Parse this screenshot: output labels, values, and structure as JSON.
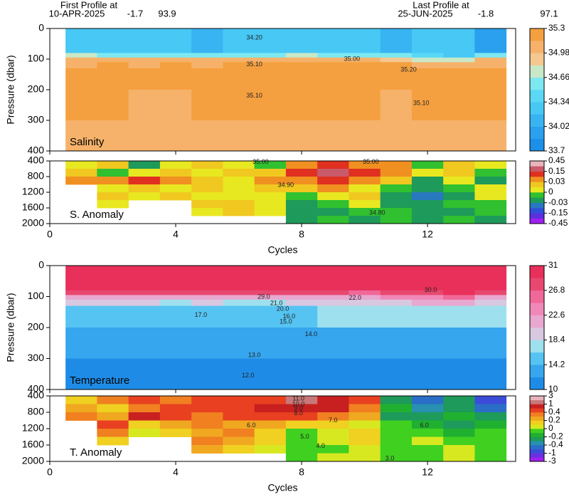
{
  "header": {
    "first_caption": "First Profile at",
    "first_date": "10-APR-2025",
    "first_lat": "-1.7",
    "first_lon": "93.9",
    "last_caption": "Last Profile at",
    "last_date": "25-JUN-2025",
    "last_lat": "-1.8",
    "last_lon": "97.1"
  },
  "chart_data": [
    {
      "type": "heatmap",
      "label": "Salinity",
      "ylabel": "Pressure (dbar)",
      "x": [
        1,
        2,
        3,
        4,
        5,
        6,
        7,
        8,
        9,
        10,
        11,
        12,
        13,
        14
      ],
      "y_bins": [
        0,
        80,
        95,
        110,
        130,
        200,
        300,
        400
      ],
      "values": [
        [
          34.3,
          34.2,
          34.2,
          34.2,
          34.1,
          34.2,
          34.2,
          34.3,
          34.3,
          34.2,
          34.1,
          34.2,
          34.3,
          34.0
        ],
        [
          34.7,
          34.6,
          34.6,
          34.5,
          34.6,
          34.6,
          34.6,
          34.7,
          34.6,
          34.5,
          34.6,
          34.4,
          34.3,
          34.5
        ],
        [
          35.0,
          35.05,
          35.0,
          35.0,
          35.05,
          35.0,
          35.0,
          35.05,
          35.0,
          35.0,
          34.9,
          34.8,
          34.7,
          35.0
        ],
        [
          35.1,
          35.15,
          35.1,
          35.2,
          35.1,
          35.15,
          35.2,
          35.15,
          35.2,
          35.2,
          35.2,
          35.1,
          35.0,
          35.1
        ],
        [
          35.15,
          35.2,
          35.2,
          35.15,
          35.2,
          35.2,
          35.15,
          35.2,
          35.2,
          35.15,
          35.2,
          35.2,
          35.2,
          35.2
        ],
        [
          35.15,
          35.15,
          35.1,
          35.1,
          35.15,
          35.15,
          35.15,
          35.15,
          35.15,
          35.15,
          35.1,
          35.15,
          35.15,
          35.15
        ],
        [
          35.12,
          35.12,
          35.1,
          35.1,
          35.12,
          35.12,
          35.1,
          35.1,
          35.12,
          35.12,
          35.1,
          35.12,
          35.12,
          35.12
        ]
      ],
      "xlim": [
        0,
        14.8
      ],
      "xticks": [
        0,
        4,
        8,
        12
      ],
      "ylim": [
        0,
        400
      ],
      "yticks": [
        0,
        100,
        200,
        300,
        400
      ],
      "colorbar": {
        "levels": [
          33.7,
          33.86,
          34.02,
          34.18,
          34.34,
          34.5,
          34.66,
          34.82,
          34.98,
          35.14,
          35.3
        ],
        "colors": [
          "#1c8fe8",
          "#2aa0ee",
          "#38b4f2",
          "#47c8f5",
          "#5ad8f5",
          "#7ee8f0",
          "#c8e8c8",
          "#f4c890",
          "#f6b26a",
          "#f5a040"
        ],
        "ticks": [
          35.3,
          34.98,
          34.66,
          34.34,
          34.02,
          33.7
        ]
      },
      "annotations": [
        {
          "text": "34.20",
          "x": 6.5,
          "y": 30
        },
        {
          "text": "35.10",
          "x": 6.5,
          "y": 118
        },
        {
          "text": "35.20",
          "x": 11.4,
          "y": 135
        },
        {
          "text": "35.10",
          "x": 6.5,
          "y": 220
        },
        {
          "text": "35.10",
          "x": 11.8,
          "y": 245
        },
        {
          "text": "35.00",
          "x": 9.6,
          "y": 100
        }
      ]
    },
    {
      "type": "heatmap",
      "label": "S. Anomaly",
      "xlabel": "Cycles",
      "x": [
        1,
        2,
        3,
        4,
        5,
        6,
        7,
        8,
        9,
        10,
        11,
        12,
        13,
        14
      ],
      "y_bins": [
        400,
        600,
        800,
        1000,
        1200,
        1400,
        1600,
        1800,
        2000
      ],
      "values": [
        [
          0.01,
          0.02,
          -0.02,
          0.01,
          0.02,
          0.01,
          -0.01,
          0.05,
          0.1,
          0.08,
          0.03,
          -0.01,
          0.02,
          0.01
        ],
        [
          0.02,
          -0.01,
          0.01,
          0.02,
          0.01,
          0.02,
          0.02,
          0.12,
          0.2,
          0.1,
          0.04,
          0.01,
          0.02,
          -0.01
        ],
        [
          0.04,
          0.05,
          0.1,
          0.03,
          0.02,
          0.01,
          0.05,
          0.08,
          0.09,
          0.06,
          0.02,
          -0.02,
          0.01,
          -0.02
        ],
        [
          null,
          0.01,
          0.02,
          0.01,
          0.02,
          0.01,
          0.02,
          0.02,
          0.04,
          0.01,
          -0.01,
          -0.02,
          -0.01,
          0.01
        ],
        [
          null,
          0.02,
          0.01,
          0.02,
          0.01,
          0.01,
          0.01,
          -0.01,
          0.01,
          0.02,
          -0.02,
          -0.04,
          -0.02,
          0.01
        ],
        [
          null,
          0.01,
          null,
          null,
          0.02,
          0.02,
          0.01,
          -0.02,
          -0.01,
          0.01,
          -0.02,
          -0.02,
          -0.01,
          -0.01
        ],
        [
          null,
          null,
          null,
          null,
          0.01,
          0.02,
          0.01,
          -0.02,
          -0.02,
          -0.01,
          -0.01,
          -0.02,
          -0.02,
          -0.01
        ],
        [
          null,
          null,
          null,
          null,
          null,
          null,
          null,
          -0.02,
          -0.01,
          -0.02,
          -0.01,
          -0.02,
          -0.01,
          -0.02
        ]
      ],
      "xlim": [
        0,
        14.8
      ],
      "xticks": [
        0,
        4,
        8,
        12
      ],
      "ylim": [
        400,
        2000
      ],
      "yticks": [
        400,
        800,
        1200,
        1600,
        2000
      ],
      "colorbar": {
        "levels": [
          -0.45,
          -0.3,
          -0.15,
          -0.09,
          -0.03,
          -0.015,
          0,
          0.015,
          0.03,
          0.09,
          0.15,
          0.3,
          0.45
        ],
        "colors": [
          "#a020f0",
          "#5a30e0",
          "#3050d8",
          "#2878c0",
          "#1e9a5a",
          "#30c030",
          "#e8e820",
          "#f0c820",
          "#f09020",
          "#e03020",
          "#c85a6a",
          "#e8b4bc"
        ],
        "ticks": [
          0.45,
          0.15,
          0.03,
          0,
          -0.03,
          -0.15,
          -0.45
        ]
      },
      "annotations": [
        {
          "text": "35.00",
          "x": 6.7,
          "y": 430
        },
        {
          "text": "35.00",
          "x": 10.2,
          "y": 430
        },
        {
          "text": "34.90",
          "x": 7.5,
          "y": 1020
        },
        {
          "text": "34.80",
          "x": 10.4,
          "y": 1730
        }
      ]
    },
    {
      "type": "heatmap",
      "label": "Temperature",
      "ylabel": "Pressure (dbar)",
      "x": [
        1,
        2,
        3,
        4,
        5,
        6,
        7,
        8,
        9,
        10,
        11,
        12,
        13,
        14
      ],
      "y_bins": [
        0,
        80,
        95,
        110,
        130,
        200,
        300,
        400
      ],
      "values": [
        [
          29.5,
          29.5,
          29.5,
          29.6,
          29.8,
          30,
          30,
          29.8,
          29.9,
          30,
          30.1,
          30,
          29.8,
          29.5
        ],
        [
          28,
          28,
          27.5,
          27,
          27,
          27,
          27,
          27.5,
          27,
          26.5,
          27,
          28,
          29,
          27
        ],
        [
          22,
          22,
          21,
          21,
          21.5,
          21,
          21,
          21.5,
          22,
          22,
          23,
          24,
          25,
          22
        ],
        [
          19,
          19,
          18.5,
          18,
          18.5,
          18,
          18,
          18.5,
          19,
          19.5,
          20,
          21,
          21,
          19
        ],
        [
          16,
          16,
          15.5,
          15.5,
          16,
          16,
          16,
          16,
          17,
          17,
          17.5,
          17,
          16.5,
          16.5
        ],
        [
          13,
          13,
          13,
          13,
          13.5,
          13.5,
          13.5,
          13,
          13.5,
          13.5,
          13.5,
          13.5,
          13,
          13
        ],
        [
          11.5,
          11.5,
          11.5,
          11.5,
          11.8,
          12,
          12,
          11.8,
          11.5,
          11.5,
          11.8,
          11.8,
          11.5,
          11.5
        ]
      ],
      "xlim": [
        0,
        14.8
      ],
      "xticks": [
        0,
        4,
        8,
        12
      ],
      "ylim": [
        0,
        400
      ],
      "yticks": [
        0,
        100,
        200,
        300,
        400
      ],
      "colorbar": {
        "levels": [
          10,
          12.1,
          14.2,
          16.3,
          18.4,
          20.5,
          22.6,
          24.7,
          26.8,
          28.9,
          31
        ],
        "colors": [
          "#1e8ce6",
          "#36a6ee",
          "#55c4f2",
          "#9ee0ee",
          "#d8c8e0",
          "#e8a8d0",
          "#f088b8",
          "#f06898",
          "#e84870",
          "#e8305a"
        ],
        "ticks": [
          31,
          26.8,
          22.6,
          18.4,
          14.2,
          10
        ]
      },
      "annotations": [
        {
          "text": "30.0",
          "x": 12.1,
          "y": 80
        },
        {
          "text": "29.0",
          "x": 6.8,
          "y": 102
        },
        {
          "text": "22.0",
          "x": 9.7,
          "y": 105
        },
        {
          "text": "21.0",
          "x": 7.2,
          "y": 122
        },
        {
          "text": "20.0",
          "x": 7.4,
          "y": 140
        },
        {
          "text": "17.0",
          "x": 4.8,
          "y": 160
        },
        {
          "text": "16.0",
          "x": 7.6,
          "y": 165
        },
        {
          "text": "15.0",
          "x": 7.5,
          "y": 182
        },
        {
          "text": "14.0",
          "x": 8.3,
          "y": 222
        },
        {
          "text": "13.0",
          "x": 6.5,
          "y": 290
        },
        {
          "text": "12.0",
          "x": 6.3,
          "y": 355
        }
      ]
    },
    {
      "type": "heatmap",
      "label": "T. Anomaly",
      "xlabel": "Cycles",
      "x": [
        1,
        2,
        3,
        4,
        5,
        6,
        7,
        8,
        9,
        10,
        11,
        12,
        13,
        14
      ],
      "y_bins": [
        400,
        600,
        800,
        1000,
        1200,
        1400,
        1600,
        1800,
        2000
      ],
      "values": [
        [
          0.1,
          0.3,
          0.5,
          0.3,
          0.4,
          0.5,
          0.6,
          1.2,
          0.8,
          0.5,
          -0.3,
          -0.5,
          -0.3,
          -0.8
        ],
        [
          0.2,
          0.1,
          0.3,
          0.5,
          0.5,
          0.6,
          0.8,
          0.9,
          0.7,
          0.3,
          -0.2,
          -0.4,
          -0.3,
          -0.5
        ],
        [
          0.3,
          0.2,
          0.8,
          0.4,
          0.3,
          0.5,
          0.4,
          0.5,
          0.3,
          0.2,
          -0.3,
          -0.3,
          -0.2,
          -0.3
        ],
        [
          null,
          0.5,
          0.1,
          0.2,
          0.3,
          0.2,
          0.2,
          0.1,
          0.1,
          0.05,
          -0.1,
          -0.2,
          -0.3,
          -0.2
        ],
        [
          null,
          0.3,
          0.05,
          0.1,
          0.2,
          0.3,
          0.1,
          -0.05,
          0.05,
          0.1,
          -0.05,
          -0.1,
          -0.2,
          -0.1
        ],
        [
          null,
          0.1,
          null,
          null,
          0.3,
          0.2,
          0.1,
          -0.05,
          0.05,
          0.1,
          -0.1,
          0.05,
          -0.1,
          -0.05
        ],
        [
          null,
          null,
          null,
          null,
          0.2,
          0.1,
          0.05,
          -0.1,
          -0.05,
          0.05,
          -0.1,
          -0.05,
          0.05,
          -0.1
        ],
        [
          null,
          null,
          null,
          null,
          null,
          null,
          null,
          -0.05,
          0.05,
          0.05,
          -0.1,
          -0.05,
          0.05,
          -0.1
        ]
      ],
      "xlim": [
        0,
        14.8
      ],
      "xticks": [
        0,
        4,
        8,
        12
      ],
      "ylim": [
        400,
        2000
      ],
      "yticks": [
        400,
        800,
        1200,
        1600,
        2000
      ],
      "colorbar": {
        "levels": [
          -3,
          -2,
          -1,
          -0.7,
          -0.4,
          -0.3,
          -0.2,
          -0.1,
          0,
          0.1,
          0.2,
          0.3,
          0.4,
          0.7,
          1,
          2,
          3
        ],
        "colors": [
          "#a020f0",
          "#6a30e0",
          "#3c4cd8",
          "#2a6ec8",
          "#2890b0",
          "#1e9a5a",
          "#20b030",
          "#40d020",
          "#d8e820",
          "#f0d020",
          "#f0a820",
          "#f08020",
          "#e84020",
          "#c82020",
          "#c87878",
          "#e8b4bc"
        ],
        "ticks": [
          3,
          1,
          0.4,
          0.2,
          0,
          -0.2,
          -0.4,
          -1,
          -3
        ]
      },
      "annotations": [
        {
          "text": "11.0",
          "x": 7.9,
          "y": 470
        },
        {
          "text": "10.0",
          "x": 7.9,
          "y": 610
        },
        {
          "text": "9.0",
          "x": 7.9,
          "y": 710
        },
        {
          "text": "8.0",
          "x": 7.9,
          "y": 830
        },
        {
          "text": "7.0",
          "x": 9.0,
          "y": 1000
        },
        {
          "text": "6.0",
          "x": 6.4,
          "y": 1120
        },
        {
          "text": "6.0",
          "x": 11.9,
          "y": 1120
        },
        {
          "text": "5.0",
          "x": 8.1,
          "y": 1400
        },
        {
          "text": "4.0",
          "x": 8.6,
          "y": 1630
        },
        {
          "text": "3.0",
          "x": 10.8,
          "y": 1930
        }
      ]
    }
  ]
}
